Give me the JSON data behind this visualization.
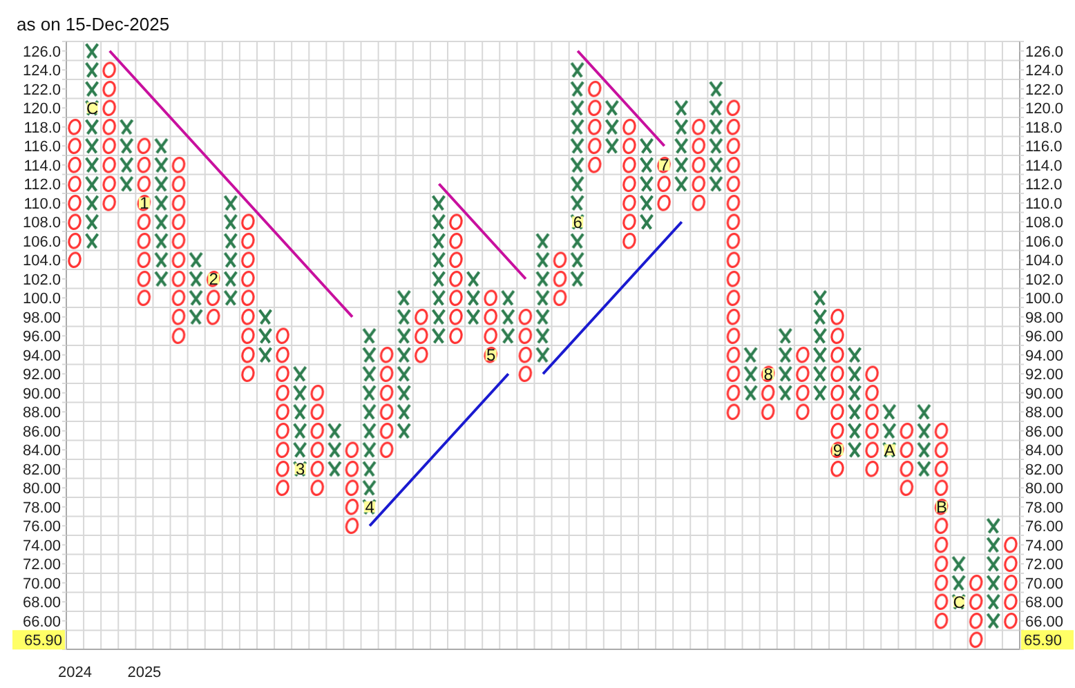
{
  "chart_data": {
    "type": "bar",
    "title": "as on 15-Dec-2025",
    "categories": [
      "2024",
      null,
      null,
      null,
      "2025",
      null,
      null,
      null,
      null,
      null,
      null,
      null,
      null,
      null,
      null,
      null,
      null,
      null,
      null,
      null,
      null,
      null,
      null,
      null,
      null,
      null,
      null,
      null,
      null,
      null,
      null,
      null,
      null,
      null,
      null,
      null,
      null,
      null,
      null,
      null,
      null,
      null,
      null,
      null,
      null,
      null,
      null,
      null,
      null,
      null,
      null,
      null,
      null,
      null,
      null
    ],
    "series": [
      {
        "marker": "cross",
        "color": "#2e7d4f",
        "base": [
          null,
          105,
          null,
          111,
          null,
          101,
          null,
          97,
          null,
          99,
          null,
          93,
          null,
          81,
          null,
          81,
          null,
          77,
          null,
          85,
          null,
          95,
          null,
          97,
          null,
          95,
          null,
          93,
          null,
          101,
          null,
          115,
          null,
          107,
          null,
          111,
          null,
          111,
          null,
          89,
          null,
          89,
          null,
          89,
          null,
          83,
          null,
          83,
          null,
          81,
          null,
          67,
          null,
          65,
          null
        ],
        "values": [
          null,
          22,
          null,
          8,
          null,
          16,
          null,
          8,
          null,
          12,
          null,
          6,
          null,
          12,
          null,
          6,
          null,
          20,
          null,
          16,
          null,
          16,
          null,
          6,
          null,
          6,
          null,
          14,
          null,
          24,
          null,
          6,
          null,
          10,
          null,
          10,
          null,
          12,
          null,
          6,
          null,
          8,
          null,
          12,
          null,
          12,
          null,
          6,
          null,
          8,
          null,
          6,
          null,
          12,
          null
        ]
      },
      {
        "marker": "circle",
        "color": "#ff3333",
        "base": [
          103,
          null,
          109,
          null,
          99,
          null,
          95,
          null,
          97,
          null,
          91,
          null,
          79,
          null,
          79,
          null,
          75,
          null,
          83,
          null,
          93,
          null,
          95,
          null,
          93,
          null,
          91,
          null,
          99,
          null,
          113,
          null,
          105,
          null,
          109,
          null,
          109,
          null,
          87,
          null,
          87,
          null,
          87,
          null,
          81,
          null,
          81,
          null,
          79,
          null,
          65,
          null,
          63,
          null,
          65
        ],
        "values": [
          16,
          null,
          16,
          null,
          18,
          null,
          20,
          null,
          6,
          null,
          18,
          null,
          18,
          null,
          12,
          null,
          10,
          null,
          12,
          null,
          6,
          null,
          14,
          null,
          8,
          null,
          8,
          null,
          6,
          null,
          10,
          null,
          14,
          null,
          6,
          null,
          10,
          null,
          34,
          null,
          6,
          null,
          8,
          null,
          18,
          null,
          12,
          null,
          8,
          null,
          22,
          null,
          8,
          null,
          10
        ]
      },
      {
        "type": "line",
        "color": "#c8109e",
        "values": [
          null,
          null,
          126,
          124,
          122,
          120,
          118,
          116,
          114,
          112,
          110,
          108,
          106,
          104,
          102,
          100,
          98,
          null,
          null,
          null,
          null,
          null,
          null,
          null,
          null,
          null,
          null,
          null,
          null,
          null,
          null,
          null,
          null,
          null,
          null,
          null,
          null,
          null,
          null,
          null,
          null,
          null,
          null,
          null,
          null,
          null,
          null,
          null,
          null,
          null,
          null,
          null,
          null,
          null,
          null
        ]
      },
      {
        "type": "line",
        "color": "#c8109e",
        "values": [
          null,
          null,
          null,
          null,
          null,
          null,
          null,
          null,
          null,
          null,
          null,
          null,
          null,
          null,
          null,
          null,
          null,
          null,
          null,
          null,
          null,
          112,
          110,
          108,
          106,
          104,
          102,
          null,
          null,
          null,
          null,
          null,
          null,
          null,
          null,
          null,
          null,
          null,
          null,
          null,
          null,
          null,
          null,
          null,
          null,
          null,
          null,
          null,
          null,
          null,
          null,
          null,
          null,
          null,
          null
        ]
      },
      {
        "type": "line",
        "color": "#c8109e",
        "values": [
          null,
          null,
          null,
          null,
          null,
          null,
          null,
          null,
          null,
          null,
          null,
          null,
          null,
          null,
          null,
          null,
          null,
          null,
          null,
          null,
          null,
          null,
          null,
          null,
          null,
          null,
          null,
          null,
          null,
          126,
          124,
          122,
          120,
          118,
          116,
          null,
          null,
          null,
          null,
          null,
          null,
          null,
          null,
          null,
          null,
          null,
          null,
          null,
          null,
          null,
          null,
          null,
          null,
          null,
          null
        ]
      },
      {
        "type": "line",
        "color": "#1a1ad0",
        "values": [
          null,
          null,
          null,
          null,
          null,
          null,
          null,
          null,
          null,
          null,
          null,
          null,
          null,
          null,
          null,
          null,
          null,
          76,
          78,
          80,
          82,
          84,
          86,
          88,
          90,
          92,
          null,
          null,
          null,
          null,
          null,
          null,
          null,
          null,
          null,
          null,
          null,
          null,
          null,
          null,
          null,
          null,
          null,
          null,
          null,
          null,
          null,
          null,
          null,
          null,
          null,
          null,
          null,
          null,
          null
        ]
      },
      {
        "type": "line",
        "color": "#1a1ad0",
        "values": [
          null,
          null,
          null,
          null,
          null,
          null,
          null,
          null,
          null,
          null,
          null,
          null,
          null,
          null,
          null,
          null,
          null,
          null,
          null,
          null,
          null,
          null,
          null,
          null,
          null,
          null,
          null,
          92,
          94,
          96,
          98,
          100,
          102,
          104,
          106,
          108,
          null,
          null,
          null,
          null,
          null,
          null,
          null,
          null,
          null,
          null,
          null,
          null,
          null,
          null,
          null,
          null,
          null,
          null,
          null
        ]
      },
      {
        "type": "scatter",
        "marker": "square",
        "color": "#ffff99",
        "values": [
          null,
          120,
          null,
          null,
          110,
          null,
          null,
          null,
          102,
          null,
          null,
          null,
          null,
          82,
          null,
          null,
          null,
          78,
          null,
          null,
          null,
          null,
          null,
          null,
          94,
          null,
          null,
          null,
          null,
          108,
          null,
          null,
          null,
          null,
          114,
          null,
          null,
          null,
          null,
          null,
          92,
          null,
          null,
          null,
          84,
          null,
          null,
          84,
          null,
          null,
          78,
          68,
          null,
          null,
          null
        ]
      }
    ],
    "annotations": [
      "C",
      "1",
      "2",
      "3",
      "4",
      "5",
      "6",
      "7",
      "8",
      "9",
      "A",
      "B",
      "C",
      "65.90",
      "65.90"
    ],
    "ylim": [
      63,
      127
    ],
    "yticks": [
      {
        "value": 63,
        "label": null
      },
      {
        "value": 65,
        "label": null
      },
      {
        "value": 66,
        "label": "66.00"
      },
      {
        "value": 67,
        "label": null
      },
      {
        "value": 68,
        "label": "68.00"
      },
      {
        "value": 69,
        "label": null
      },
      {
        "value": 70,
        "label": "70.00"
      },
      {
        "value": 71,
        "label": null
      },
      {
        "value": 72,
        "label": "72.00"
      },
      {
        "value": 73,
        "label": null
      },
      {
        "value": 74,
        "label": "74.00"
      },
      {
        "value": 75,
        "label": null
      },
      {
        "value": 76,
        "label": "76.00"
      },
      {
        "value": 77,
        "label": null
      },
      {
        "value": 78,
        "label": "78.00"
      },
      {
        "value": 79,
        "label": null
      },
      {
        "value": 80,
        "label": "80.00"
      },
      {
        "value": 81,
        "label": null
      },
      {
        "value": 82,
        "label": "82.00"
      },
      {
        "value": 83,
        "label": null
      },
      {
        "value": 84,
        "label": "84.00"
      },
      {
        "value": 85,
        "label": null
      },
      {
        "value": 86,
        "label": "86.00"
      },
      {
        "value": 87,
        "label": null
      },
      {
        "value": 88,
        "label": "88.00"
      },
      {
        "value": 89,
        "label": null
      },
      {
        "value": 90,
        "label": "90.00"
      },
      {
        "value": 91,
        "label": null
      },
      {
        "value": 92,
        "label": "92.00"
      },
      {
        "value": 93,
        "label": null
      },
      {
        "value": 94,
        "label": "94.00"
      },
      {
        "value": 95,
        "label": null
      },
      {
        "value": 96,
        "label": "96.00"
      },
      {
        "value": 97,
        "label": null
      },
      {
        "value": 98,
        "label": "98.00"
      },
      {
        "value": 99,
        "label": null
      },
      {
        "value": 100,
        "label": "100.0"
      },
      {
        "value": 101,
        "label": null
      },
      {
        "value": 102,
        "label": "102.0"
      },
      {
        "value": 103,
        "label": null
      },
      {
        "value": 104,
        "label": "104.0"
      },
      {
        "value": 105,
        "label": null
      },
      {
        "value": 106,
        "label": "106.0"
      },
      {
        "value": 107,
        "label": null
      },
      {
        "value": 108,
        "label": "108.0"
      },
      {
        "value": 109,
        "label": null
      },
      {
        "value": 110,
        "label": "110.0"
      },
      {
        "value": 111,
        "label": null
      },
      {
        "value": 112,
        "label": "112.0"
      },
      {
        "value": 113,
        "label": null
      },
      {
        "value": 114,
        "label": "114.0"
      },
      {
        "value": 115,
        "label": null
      },
      {
        "value": 116,
        "label": "116.0"
      },
      {
        "value": 117,
        "label": null
      },
      {
        "value": 118,
        "label": "118.0"
      },
      {
        "value": 119,
        "label": null
      },
      {
        "value": 120,
        "label": "120.0"
      },
      {
        "value": 121,
        "label": null
      },
      {
        "value": 122,
        "label": "122.0"
      },
      {
        "value": 123,
        "label": null
      },
      {
        "value": 124,
        "label": "124.0"
      },
      {
        "value": 125,
        "label": null
      },
      {
        "value": 126,
        "label": "126.0"
      },
      {
        "value": 127,
        "label": null
      }
    ],
    "y2lim": [
      63,
      127
    ],
    "y2ticks": [
      {
        "value": 63,
        "label": null
      },
      {
        "value": 65,
        "label": null
      },
      {
        "value": 66,
        "label": "66.00"
      },
      {
        "value": 67,
        "label": null
      },
      {
        "value": 68,
        "label": "68.00"
      },
      {
        "value": 69,
        "label": null
      },
      {
        "value": 70,
        "label": "70.00"
      },
      {
        "value": 71,
        "label": null
      },
      {
        "value": 72,
        "label": "72.00"
      },
      {
        "value": 73,
        "label": null
      },
      {
        "value": 74,
        "label": "74.00"
      },
      {
        "value": 75,
        "label": null
      },
      {
        "value": 76,
        "label": "76.00"
      },
      {
        "value": 77,
        "label": null
      },
      {
        "value": 78,
        "label": "78.00"
      },
      {
        "value": 79,
        "label": null
      },
      {
        "value": 80,
        "label": "80.00"
      },
      {
        "value": 81,
        "label": null
      },
      {
        "value": 82,
        "label": "82.00"
      },
      {
        "value": 83,
        "label": null
      },
      {
        "value": 84,
        "label": "84.00"
      },
      {
        "value": 85,
        "label": null
      },
      {
        "value": 86,
        "label": "86.00"
      },
      {
        "value": 87,
        "label": null
      },
      {
        "value": 88,
        "label": "88.00"
      },
      {
        "value": 89,
        "label": null
      },
      {
        "value": 90,
        "label": "90.00"
      },
      {
        "value": 91,
        "label": null
      },
      {
        "value": 92,
        "label": "92.00"
      },
      {
        "value": 93,
        "label": null
      },
      {
        "value": 94,
        "label": "94.00"
      },
      {
        "value": 95,
        "label": null
      },
      {
        "value": 96,
        "label": "96.00"
      },
      {
        "value": 97,
        "label": null
      },
      {
        "value": 98,
        "label": "98.00"
      },
      {
        "value": 99,
        "label": null
      },
      {
        "value": 100,
        "label": "100.0"
      },
      {
        "value": 101,
        "label": null
      },
      {
        "value": 102,
        "label": "102.0"
      },
      {
        "value": 103,
        "label": null
      },
      {
        "value": 104,
        "label": "104.0"
      },
      {
        "value": 105,
        "label": null
      },
      {
        "value": 106,
        "label": "106.0"
      },
      {
        "value": 107,
        "label": null
      },
      {
        "value": 108,
        "label": "108.0"
      },
      {
        "value": 109,
        "label": null
      },
      {
        "value": 110,
        "label": "110.0"
      },
      {
        "value": 111,
        "label": null
      },
      {
        "value": 112,
        "label": "112.0"
      },
      {
        "value": 113,
        "label": null
      },
      {
        "value": 114,
        "label": "114.0"
      },
      {
        "value": 115,
        "label": null
      },
      {
        "value": 116,
        "label": "116.0"
      },
      {
        "value": 117,
        "label": null
      },
      {
        "value": 118,
        "label": "118.0"
      },
      {
        "value": 119,
        "label": null
      },
      {
        "value": 120,
        "label": "120.0"
      },
      {
        "value": 121,
        "label": null
      },
      {
        "value": 122,
        "label": "122.0"
      },
      {
        "value": 123,
        "label": null
      },
      {
        "value": 124,
        "label": "124.0"
      },
      {
        "value": 125,
        "label": null
      },
      {
        "value": 126,
        "label": "126.0"
      },
      {
        "value": 127,
        "label": null
      }
    ],
    "grid": true
  }
}
